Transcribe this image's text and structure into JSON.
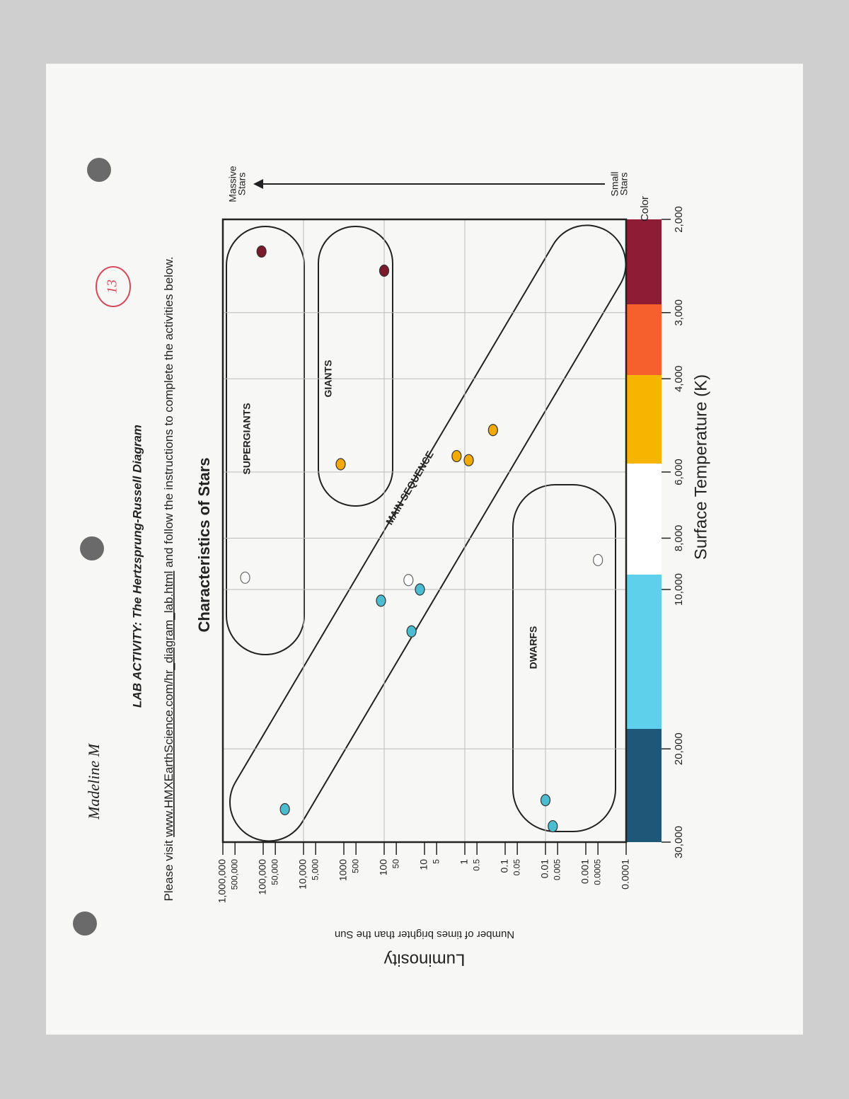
{
  "header": {
    "name": "Madeline M",
    "score": "13",
    "activity": "LAB ACTIVITY: The Hertzsprung-Russell Diagram",
    "instructions": [
      "Please visit ",
      "www.HMXEarthScience.com/hr_diagram_lab.html",
      " and follow the instructions to complete the activities below."
    ]
  },
  "chart_data": {
    "type": "scatter",
    "title": "Characteristics of Stars",
    "xlabel": "Surface Temperature (K)",
    "ylabel": "Luminosity",
    "ylabel_sub": "Number of times brighter than the Sun",
    "xscale": "log",
    "yscale": "log",
    "grid": true,
    "xlim": [
      30000,
      2000
    ],
    "ylim": [
      0.0001,
      1000000
    ],
    "xticks": [
      {
        "value": 30000,
        "label": "30,000"
      },
      {
        "value": 20000,
        "label": "20,000"
      },
      {
        "value": 10000,
        "label": "10,000"
      },
      {
        "value": 8000,
        "label": "8,000"
      },
      {
        "value": 6000,
        "label": "6,000"
      },
      {
        "value": 4000,
        "label": "4,000"
      },
      {
        "value": 3000,
        "label": "3,000"
      },
      {
        "value": 2000,
        "label": "2,000"
      }
    ],
    "yticks": [
      {
        "value": 1000000,
        "label": "1,000,000"
      },
      {
        "value": 500000,
        "label": "500,000"
      },
      {
        "value": 100000,
        "label": "100,000"
      },
      {
        "value": 50000,
        "label": "50,000"
      },
      {
        "value": 10000,
        "label": "10,000"
      },
      {
        "value": 5000,
        "label": "5,000"
      },
      1000,
      500,
      100,
      50,
      10,
      5,
      1,
      0.5,
      0.1,
      0.05,
      0.01,
      0.005,
      0.001,
      0.0005,
      0.0001
    ],
    "x": [
      2300,
      2500,
      5800,
      5000,
      5600,
      5700,
      9500,
      9600,
      10000,
      10500,
      12000,
      8800,
      26000,
      25000,
      28000
    ],
    "values": [
      110000,
      100,
      1200,
      0.2,
      1.6,
      0.8,
      280000,
      25,
      13,
      120,
      21,
      0.0005,
      29000,
      0.01,
      0.0066
    ],
    "colors": [
      "#7a1a2a",
      "#7a1a2a",
      "#f2a900",
      "#f2a900",
      "#f2a900",
      "#f2a900",
      "#ffffff",
      "#ffffff",
      "#4cbcd0",
      "#4cbcd0",
      "#4cbcd0",
      "#ffffff",
      "#4cbcd0",
      "#4cbcd0",
      "#4cbcd0"
    ],
    "regions": [
      "SUPERGIANTS",
      "GIANTS",
      "MAIN SEQUENCE",
      "DWARFS"
    ],
    "mass_arrow": {
      "top": [
        "Massive",
        "Stars"
      ],
      "bottom": [
        "Small",
        "Stars"
      ]
    },
    "colorbar_label": "Color"
  }
}
